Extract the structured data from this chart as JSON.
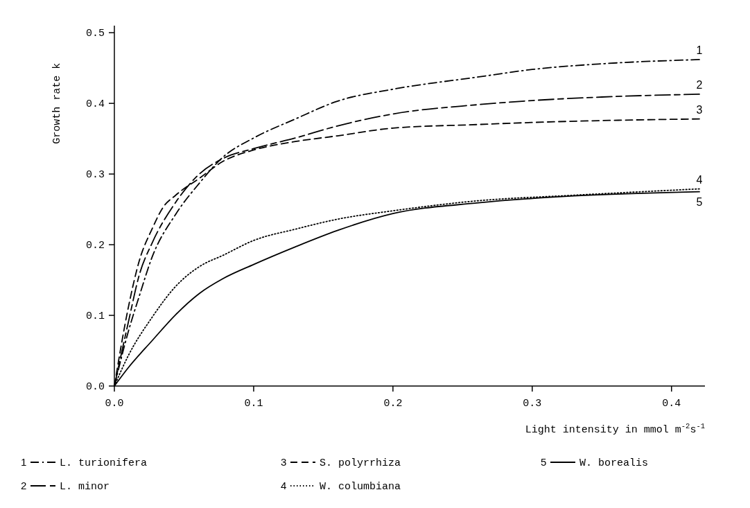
{
  "chart_data": {
    "type": "line",
    "xlabel": "Light intensity in mmol m$^{-2}$s$^{-1}$",
    "ylabel": "Growth rate k",
    "xlim": [
      0,
      0.424
    ],
    "ylim": [
      0,
      0.51
    ],
    "xticks": [
      {
        "value": 0,
        "label": "0.0"
      },
      0.1,
      0.2,
      0.3,
      0.4
    ],
    "yticks": [
      {
        "value": 0,
        "label": "0.0"
      },
      0.1,
      0.2,
      0.3,
      0.4,
      0.5
    ],
    "grid": false,
    "legend": "bottom",
    "marker": "none",
    "series": [
      {
        "name": "L. turionifera",
        "color": "#000000",
        "line_style": "dashdot",
        "x": [
          0,
          0.01,
          0.018,
          0.027,
          0.044,
          0.061,
          0.078,
          0.1,
          0.13,
          0.16,
          0.2,
          0.26,
          0.3,
          0.35,
          0.42
        ],
        "values": [
          0,
          0.077,
          0.128,
          0.182,
          0.243,
          0.287,
          0.324,
          0.351,
          0.378,
          0.403,
          0.42,
          0.437,
          0.448,
          0.456,
          0.462
        ]
      },
      {
        "name": "L. minor",
        "color": "#000000",
        "line_style": "longdash",
        "x": [
          0,
          0.01,
          0.018,
          0.027,
          0.044,
          0.061,
          0.078,
          0.1,
          0.13,
          0.16,
          0.2,
          0.26,
          0.3,
          0.35,
          0.42
        ],
        "values": [
          0,
          0.09,
          0.158,
          0.202,
          0.26,
          0.3,
          0.322,
          0.336,
          0.351,
          0.368,
          0.385,
          0.398,
          0.404,
          0.409,
          0.413
        ]
      },
      {
        "name": "S. polyrrhiza",
        "color": "#000000",
        "line_style": "dashed",
        "x": [
          0,
          0.01,
          0.018,
          0.027,
          0.035,
          0.044,
          0.061,
          0.078,
          0.1,
          0.13,
          0.16,
          0.2,
          0.26,
          0.3,
          0.42
        ],
        "values": [
          0,
          0.111,
          0.178,
          0.222,
          0.253,
          0.27,
          0.294,
          0.318,
          0.334,
          0.346,
          0.354,
          0.365,
          0.37,
          0.373,
          0.378
        ]
      },
      {
        "name": "W. columbiana",
        "color": "#000000",
        "line_style": "dotted",
        "x": [
          0,
          0.01,
          0.027,
          0.044,
          0.061,
          0.078,
          0.1,
          0.13,
          0.16,
          0.2,
          0.26,
          0.33,
          0.42
        ],
        "values": [
          0,
          0.043,
          0.097,
          0.141,
          0.169,
          0.185,
          0.206,
          0.222,
          0.236,
          0.248,
          0.262,
          0.27,
          0.279
        ]
      },
      {
        "name": "W. borealis",
        "color": "#000000",
        "line_style": "solid",
        "x": [
          0,
          0.01,
          0.027,
          0.044,
          0.061,
          0.078,
          0.1,
          0.13,
          0.16,
          0.2,
          0.26,
          0.33,
          0.42
        ],
        "values": [
          0,
          0.026,
          0.064,
          0.101,
          0.131,
          0.152,
          0.172,
          0.197,
          0.22,
          0.244,
          0.259,
          0.269,
          0.275
        ]
      }
    ],
    "annotations": [
      "1",
      "2",
      "3",
      "4",
      "5"
    ]
  }
}
